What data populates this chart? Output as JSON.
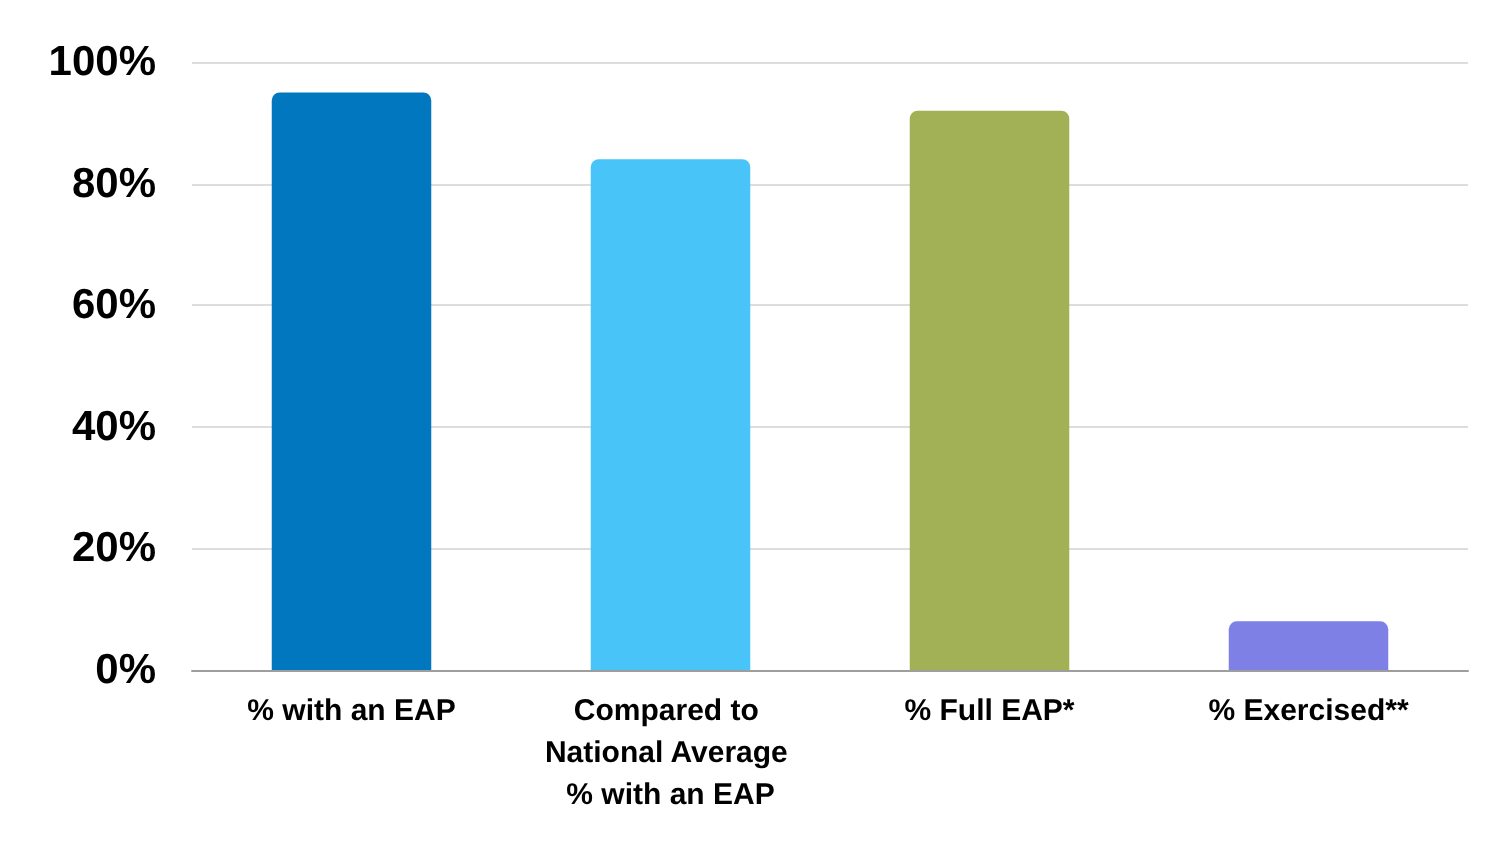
{
  "chart_data": {
    "type": "bar",
    "categories": [
      "% with an EAP",
      "Compared to National Average % with an EAP",
      "% Full EAP*",
      "% Exercised**"
    ],
    "values": [
      95,
      84,
      92,
      8
    ],
    "colors": [
      "#0077bf",
      "#48c4f9",
      "#a3b156",
      "#7f80e6"
    ],
    "ylim": [
      0,
      100
    ],
    "yticks": [
      {
        "value": 0,
        "label": "0%"
      },
      {
        "value": 20,
        "label": "20%"
      },
      {
        "value": 40,
        "label": "40%"
      },
      {
        "value": 60,
        "label": "60%"
      },
      {
        "value": 80,
        "label": "80%"
      },
      {
        "value": 100,
        "label": "100%"
      }
    ],
    "grid": "y"
  }
}
